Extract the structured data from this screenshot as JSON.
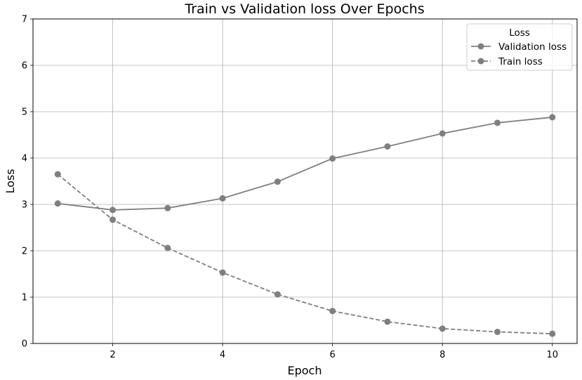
{
  "chart_data": {
    "type": "line",
    "title": "Train vs Validation loss Over Epochs",
    "xlabel": "Epoch",
    "ylabel": "Loss",
    "x": [
      1,
      2,
      3,
      4,
      5,
      6,
      7,
      8,
      9,
      10
    ],
    "xlim": [
      0.55,
      10.45
    ],
    "ylim": [
      0,
      7
    ],
    "xticks": [
      2,
      4,
      6,
      8,
      10
    ],
    "yticks": [
      0,
      1,
      2,
      3,
      4,
      5,
      6,
      7
    ],
    "grid": true,
    "legend": {
      "title": "Loss",
      "position": "top-right"
    },
    "series": [
      {
        "name": "Validation loss",
        "style": "solid",
        "marker": "circle",
        "color": "#7f7f7f",
        "values": [
          3.02,
          2.88,
          2.92,
          3.13,
          3.49,
          3.99,
          4.25,
          4.53,
          4.76,
          4.88
        ]
      },
      {
        "name": "Train loss",
        "style": "dashed",
        "marker": "circle",
        "color": "#7f7f7f",
        "values": [
          3.65,
          2.67,
          2.06,
          1.53,
          1.06,
          0.7,
          0.47,
          0.32,
          0.25,
          0.21
        ]
      }
    ]
  }
}
